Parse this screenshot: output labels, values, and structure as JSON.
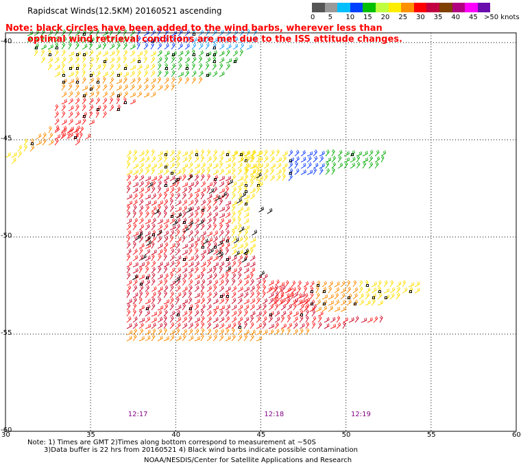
{
  "header": {
    "title": "Rapidscat Winds(12.5KM) 20160521 ascending",
    "note_line1": "Note: black circles have been added to the wind barbs, wherever less than",
    "note_line2": "optimal wind retrieval conditions are met due to the ISS attitude changes."
  },
  "legend": {
    "unit_label": ">50 knots",
    "labels": [
      "0",
      "5",
      "10",
      "15",
      "20",
      "25",
      "30",
      "35",
      "40",
      "45"
    ],
    "colors": [
      "#555555",
      "#999999",
      "#00bfff",
      "#0040ff",
      "#00c000",
      "#c0ff40",
      "#ffee00",
      "#ff9000",
      "#ff0000",
      "#c00040",
      "#804000",
      "#b00080",
      "#ff00ff",
      "#6a0dad"
    ]
  },
  "axes": {
    "lon_labels": [
      "30",
      "35",
      "40",
      "45",
      "50",
      "55",
      "60"
    ],
    "lat_labels": [
      "-40",
      "-45",
      "-50",
      "-55",
      "-60"
    ],
    "lon_values": [
      30,
      35,
      40,
      45,
      50,
      55,
      60
    ],
    "lat_values": [
      -40,
      -45,
      -50,
      -55,
      -60
    ]
  },
  "times": [
    {
      "label": "12:17",
      "lon": 37.6
    },
    {
      "label": "12:18",
      "lon": 45.6
    },
    {
      "label": "12:19",
      "lon": 50.7
    }
  ],
  "footer": {
    "line1": "Note: 1) Times are GMT 2)Times along bottom correspond to measurement at ~50S",
    "line2": "3)Data buffer is 22 hrs from 20160521 4) Black wind barbs indicate possible contamination",
    "credit": "NOAA/NESDIS/Center for Satellite Applications and Research"
  }
}
